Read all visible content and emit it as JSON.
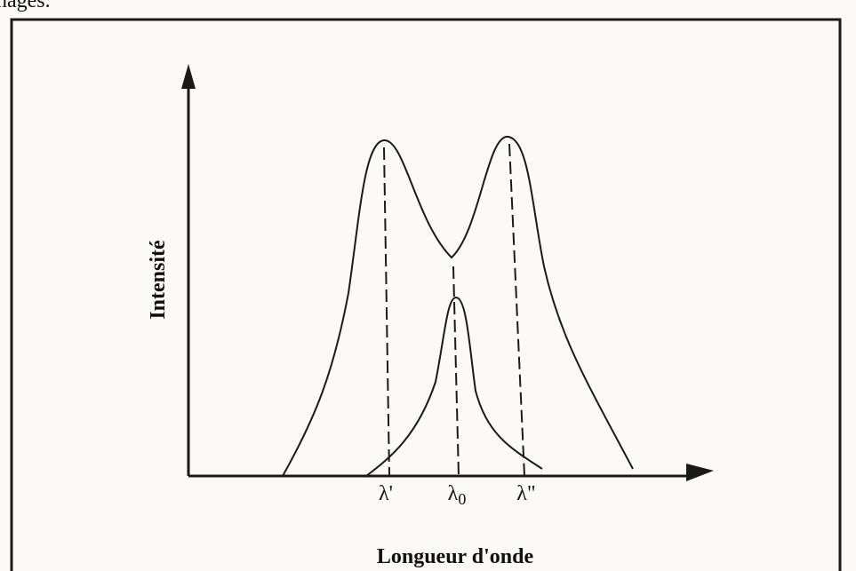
{
  "header": {
    "text": "nages."
  },
  "diagram": {
    "y_axis_label": "Intensité",
    "x_axis_label": "Longueur d'onde",
    "markers": [
      {
        "symbol": "λ'"
      },
      {
        "symbol": "λ",
        "subscript": "0"
      },
      {
        "symbol": "λ\""
      }
    ]
  }
}
